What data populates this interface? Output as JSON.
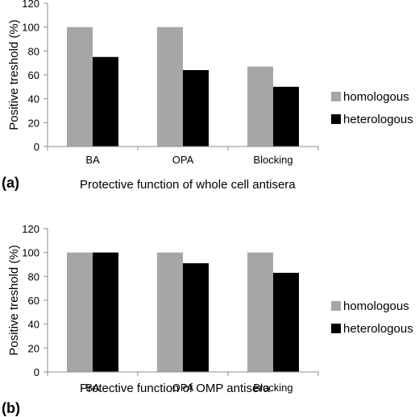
{
  "chart_data": [
    {
      "type": "bar",
      "panel_label": "(a)",
      "categories": [
        "BA",
        "OPA",
        "Blocking"
      ],
      "series": [
        {
          "name": "homologous",
          "color": "#a6a6a6",
          "values": [
            100,
            100,
            67
          ]
        },
        {
          "name": "heterologous",
          "color": "#000000",
          "values": [
            75,
            64,
            50
          ]
        }
      ],
      "xlabel": "Protective function of whole cell antisera",
      "ylabel": "Positive treshold (%)",
      "ylim": [
        0,
        120
      ],
      "yticks": [
        "0",
        "20",
        "40",
        "60",
        "80",
        "100",
        "120"
      ],
      "grid": false,
      "legend_position": "right"
    },
    {
      "type": "bar",
      "panel_label": "(b)",
      "categories": [
        "BA",
        "OPA",
        "Blocking"
      ],
      "series": [
        {
          "name": "homologous",
          "color": "#a6a6a6",
          "values": [
            100,
            100,
            100
          ]
        },
        {
          "name": "heterologous",
          "color": "#000000",
          "values": [
            100,
            91,
            83
          ]
        }
      ],
      "xlabel": "Protective function of OMP antisera",
      "ylabel": "Positive treshold (%)",
      "ylim": [
        0,
        120
      ],
      "yticks": [
        "0",
        "20",
        "40",
        "60",
        "80",
        "100",
        "120"
      ],
      "grid": false,
      "legend_position": "right"
    }
  ]
}
